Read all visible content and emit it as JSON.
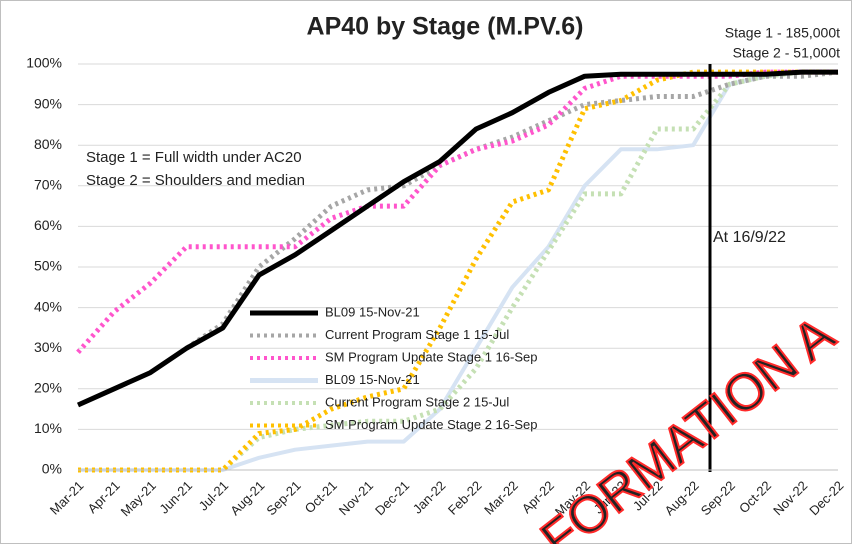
{
  "chart_data": {
    "type": "line",
    "title": "AP40 by Stage (M.PV.6)",
    "categories": [
      "Mar-21",
      "Apr-21",
      "May-21",
      "Jun-21",
      "Jul-21",
      "Aug-21",
      "Sep-21",
      "Oct-21",
      "Nov-21",
      "Dec-21",
      "Jan-22",
      "Feb-22",
      "Mar-22",
      "Apr-22",
      "May-22",
      "Jun-22",
      "Jul-22",
      "Aug-22",
      "Sep-22",
      "Oct-22",
      "Nov-22",
      "Dec-22"
    ],
    "series": [
      {
        "name": "BL09 15-Nov-21",
        "color": "#000000",
        "dash": false,
        "values": [
          16,
          20,
          24,
          30,
          35,
          48,
          53,
          59,
          65,
          71,
          76,
          84,
          88,
          93,
          97,
          97.5,
          97.5,
          97.5,
          97.5,
          97.5,
          98,
          98
        ]
      },
      {
        "name": "Current Program Stage 1 15-Jul",
        "color": "#a6a6a6",
        "dash": true,
        "values": [
          null,
          null,
          null,
          30,
          36,
          50,
          57,
          65,
          69,
          70,
          75,
          79,
          82,
          86,
          90,
          91,
          92,
          92,
          95,
          97,
          97,
          98
        ]
      },
      {
        "name": "SM Program Update Stage 1 16-Sep",
        "color": "#ff55cc",
        "dash": true,
        "values": [
          29,
          39,
          46,
          55,
          55,
          55,
          55,
          62,
          65,
          65,
          75,
          79,
          81,
          85,
          94,
          97,
          97,
          97,
          97,
          98,
          98,
          98
        ]
      },
      {
        "name": "BL09 15-Nov-21",
        "color": "#d6e3f3",
        "dash": false,
        "values": [
          0,
          0,
          0,
          0,
          0,
          3,
          5,
          6,
          7,
          7,
          15,
          30,
          45,
          55,
          70,
          79,
          79,
          80,
          95,
          97,
          98,
          98
        ]
      },
      {
        "name": "Current Program Stage 2 15-Jul",
        "color": "#c5e0b4",
        "dash": true,
        "values": [
          0,
          0,
          0,
          0,
          0,
          8,
          10,
          11,
          12,
          12,
          15,
          25,
          40,
          54,
          68,
          68,
          84,
          84,
          95,
          97,
          98,
          98
        ]
      },
      {
        "name": "SM Program Update Stage 2 16-Sep",
        "color": "#ffc000",
        "dash": true,
        "values": [
          0,
          0,
          0,
          0,
          0,
          9,
          10,
          15,
          18,
          20,
          35,
          52,
          66,
          69,
          89,
          91,
          96,
          98,
          98,
          98,
          98,
          98
        ]
      }
    ],
    "ylim": [
      0,
      100
    ],
    "yticks": [
      {
        "value": 0,
        "label": "0%"
      },
      {
        "value": 10,
        "label": "10%"
      },
      {
        "value": 20,
        "label": "20%"
      },
      {
        "value": 30,
        "label": "30%"
      },
      {
        "value": 40,
        "label": "40%"
      },
      {
        "value": 50,
        "label": "50%"
      },
      {
        "value": 60,
        "label": "60%"
      },
      {
        "value": 70,
        "label": "70%"
      },
      {
        "value": 80,
        "label": "80%"
      },
      {
        "value": 90,
        "label": "90%"
      },
      {
        "value": 100,
        "label": "100%"
      }
    ],
    "grid": true,
    "annotations": [
      "Stage 1 - 185,000t",
      "Stage 2 - 51,000t",
      "Stage 1 = Full width under AC20",
      "Stage 2 = Shoulders and median",
      "At 16/9/22"
    ],
    "watermark": "FORMATION A"
  }
}
